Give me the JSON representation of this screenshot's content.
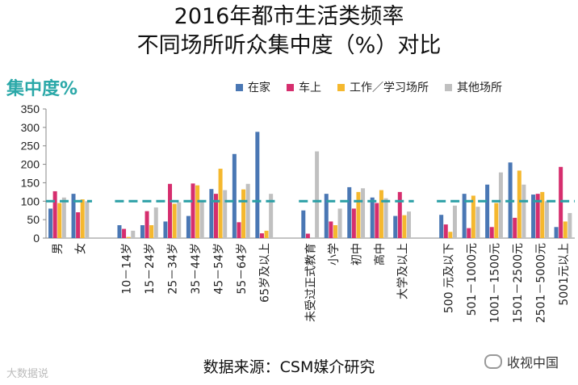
{
  "chart_data": {
    "type": "bar",
    "title": "2016年都市生活类频率",
    "subtitle": "不同场所听众集中度（%）对比",
    "ylabel": "集中度%",
    "ylim": [
      0,
      350
    ],
    "yticks": [
      0,
      50,
      100,
      150,
      200,
      250,
      300,
      350
    ],
    "reference_line": 100,
    "groups": [
      {
        "categories": [
          "男",
          "女"
        ]
      },
      {
        "categories": [
          "10－14岁",
          "15－24岁",
          "25－34岁",
          "35－44岁",
          "45－54岁",
          "55－64岁",
          "65岁及以上"
        ]
      },
      {
        "categories": [
          "未受过正式教育",
          "小学",
          "初中",
          "高中",
          "大学及以上"
        ]
      },
      {
        "categories": [
          "500 元及以下",
          "501－1000元",
          "1001－1500元",
          "1501－2500元",
          "2501－5000元",
          "5001元以上"
        ]
      }
    ],
    "categories": [
      "男",
      "女",
      "10－14岁",
      "15－24岁",
      "25－34岁",
      "35－44岁",
      "45－54岁",
      "55－64岁",
      "65岁及以上",
      "未受过正式教育",
      "小学",
      "初中",
      "高中",
      "大学及以上",
      "500 元及以下",
      "501－1000元",
      "1001－1500元",
      "1501－2500元",
      "2501－5000元",
      "5001元以上"
    ],
    "series": [
      {
        "name": "在家",
        "color": "#4a77b4",
        "values": [
          80,
          120,
          35,
          35,
          45,
          60,
          133,
          228,
          288,
          75,
          120,
          138,
          110,
          60,
          63,
          120,
          145,
          205,
          118,
          30
        ]
      },
      {
        "name": "车上",
        "color": "#d62e6e",
        "values": [
          127,
          70,
          25,
          73,
          147,
          148,
          120,
          43,
          13,
          12,
          45,
          80,
          95,
          125,
          37,
          27,
          30,
          55,
          120,
          193
        ]
      },
      {
        "name": "工作／学习场所",
        "color": "#f5b82e",
        "values": [
          95,
          105,
          3,
          35,
          93,
          143,
          188,
          132,
          20,
          0,
          35,
          125,
          130,
          62,
          17,
          115,
          95,
          183,
          125,
          45
        ]
      },
      {
        "name": "其他场所",
        "color": "#c0c0c0",
        "values": [
          110,
          100,
          20,
          83,
          97,
          103,
          130,
          147,
          120,
          235,
          80,
          135,
          108,
          72,
          88,
          85,
          178,
          145,
          100,
          68
        ]
      }
    ],
    "legend_position": "top"
  },
  "source_text": "数据来源：CSM媒介研究",
  "watermark_right": "收视中国",
  "watermark_left": "大数据说"
}
